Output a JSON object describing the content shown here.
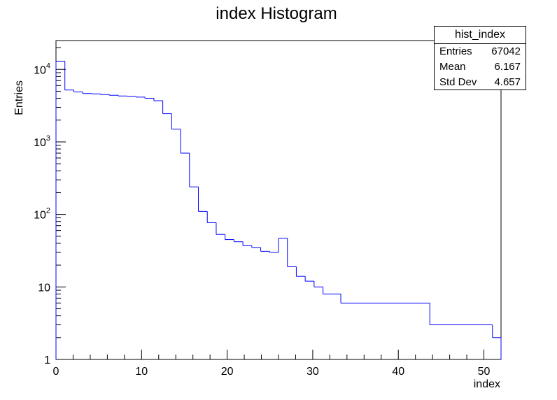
{
  "chart_data": {
    "type": "bar",
    "title": "index Histogram",
    "xlabel": "index",
    "ylabel": "Entries",
    "yscale": "log",
    "xlim": [
      0,
      52
    ],
    "ylim": [
      1,
      25000
    ],
    "x_ticks": [
      0,
      10,
      20,
      30,
      40,
      50
    ],
    "y_ticks": [
      {
        "value": 1,
        "base": "1",
        "exp": ""
      },
      {
        "value": 10,
        "base": "10",
        "exp": ""
      },
      {
        "value": 100,
        "base": "10",
        "exp": "2"
      },
      {
        "value": 1000,
        "base": "10",
        "exp": "3"
      },
      {
        "value": 10000,
        "base": "10",
        "exp": "4"
      }
    ],
    "histogram_line_color": "#0000ff",
    "bins": [
      {
        "x0": 0.0,
        "x1": 1.04,
        "value": 13000
      },
      {
        "x0": 1.04,
        "x1": 2.08,
        "value": 5200
      },
      {
        "x0": 2.08,
        "x1": 3.12,
        "value": 4900
      },
      {
        "x0": 3.12,
        "x1": 4.16,
        "value": 4650
      },
      {
        "x0": 4.16,
        "x1": 5.2,
        "value": 4600
      },
      {
        "x0": 5.2,
        "x1": 6.24,
        "value": 4500
      },
      {
        "x0": 6.24,
        "x1": 7.28,
        "value": 4400
      },
      {
        "x0": 7.28,
        "x1": 8.32,
        "value": 4300
      },
      {
        "x0": 8.32,
        "x1": 9.36,
        "value": 4250
      },
      {
        "x0": 9.36,
        "x1": 10.4,
        "value": 4150
      },
      {
        "x0": 10.4,
        "x1": 11.44,
        "value": 4000
      },
      {
        "x0": 11.44,
        "x1": 12.48,
        "value": 3700
      },
      {
        "x0": 12.48,
        "x1": 13.52,
        "value": 2450
      },
      {
        "x0": 13.52,
        "x1": 14.56,
        "value": 1500
      },
      {
        "x0": 14.56,
        "x1": 15.6,
        "value": 700
      },
      {
        "x0": 15.6,
        "x1": 16.64,
        "value": 240
      },
      {
        "x0": 16.64,
        "x1": 17.68,
        "value": 110
      },
      {
        "x0": 17.68,
        "x1": 18.72,
        "value": 77
      },
      {
        "x0": 18.72,
        "x1": 19.76,
        "value": 53
      },
      {
        "x0": 19.76,
        "x1": 20.8,
        "value": 45
      },
      {
        "x0": 20.8,
        "x1": 21.84,
        "value": 42
      },
      {
        "x0": 21.84,
        "x1": 22.88,
        "value": 37
      },
      {
        "x0": 22.88,
        "x1": 23.92,
        "value": 35
      },
      {
        "x0": 23.92,
        "x1": 24.96,
        "value": 31
      },
      {
        "x0": 24.96,
        "x1": 26.0,
        "value": 30
      },
      {
        "x0": 26.0,
        "x1": 27.04,
        "value": 47
      },
      {
        "x0": 27.04,
        "x1": 28.08,
        "value": 19
      },
      {
        "x0": 28.08,
        "x1": 29.12,
        "value": 14
      },
      {
        "x0": 29.12,
        "x1": 30.16,
        "value": 12
      },
      {
        "x0": 30.16,
        "x1": 31.2,
        "value": 10
      },
      {
        "x0": 31.2,
        "x1": 33.28,
        "value": 8
      },
      {
        "x0": 33.28,
        "x1": 43.68,
        "value": 6
      },
      {
        "x0": 43.68,
        "x1": 51.0,
        "value": 3
      },
      {
        "x0": 51.0,
        "x1": 52.0,
        "value": 2
      }
    ]
  },
  "stats": {
    "title": "hist_index",
    "rows": [
      {
        "label": "Entries",
        "value": "67042"
      },
      {
        "label": "Mean",
        "value": "6.167"
      },
      {
        "label": "Std Dev",
        "value": "4.657"
      }
    ]
  }
}
